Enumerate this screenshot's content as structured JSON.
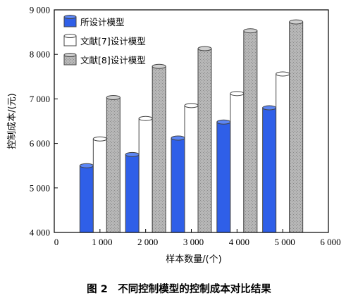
{
  "caption": "图 2　不同控制模型的控制成本对比结果",
  "colors": {
    "series_blue": "#2f5fe8",
    "series_blue_top": "#5c86f5",
    "series_white": "#ffffff",
    "series_gray": "#b7b7b7",
    "outline": "#444444"
  },
  "chart_data": {
    "type": "bar",
    "x": [
      1000,
      2000,
      3000,
      4000,
      5000
    ],
    "xlim": [
      0,
      6000
    ],
    "x_ticks": [
      0,
      1000,
      2000,
      3000,
      4000,
      5000,
      6000
    ],
    "x_tick_labels": [
      "0",
      "1 000",
      "2 000",
      "3 000",
      "4 000",
      "5 000",
      "6 000"
    ],
    "ylim": [
      4000,
      9000
    ],
    "y_ticks": [
      4000,
      5000,
      6000,
      7000,
      8000,
      9000
    ],
    "y_tick_labels": [
      "4 000",
      "5 000",
      "6 000",
      "7 000",
      "8 000",
      "9 000"
    ],
    "xlabel": "样本数量/(个)",
    "ylabel": "控制成本/(元)",
    "legend_position": "top-left",
    "grid": false,
    "series": [
      {
        "name": "所设计模型",
        "style": "blue",
        "values": [
          5500,
          5750,
          6120,
          6480,
          6800
        ]
      },
      {
        "name": "文献[7]设计模型",
        "style": "white",
        "values": [
          6100,
          6560,
          6850,
          7120,
          7560
        ]
      },
      {
        "name": "文献[8]设计模型",
        "style": "gray",
        "values": [
          7030,
          7730,
          8130,
          8530,
          8730
        ]
      }
    ]
  }
}
